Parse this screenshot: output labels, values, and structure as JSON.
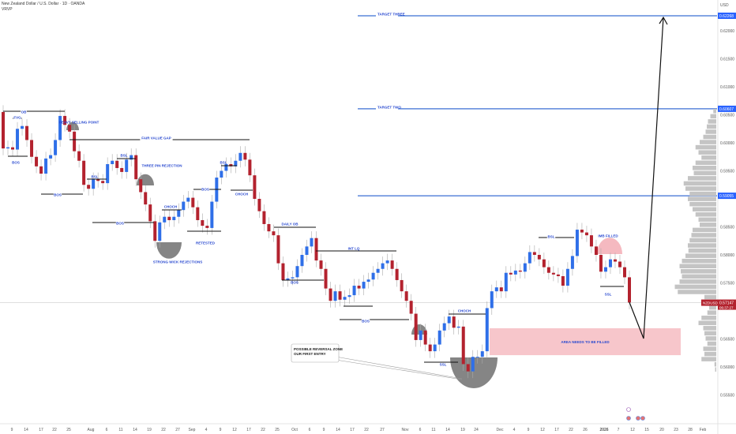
{
  "header": {
    "title": "New Zealand Dollar / U.S. Dollar · 1D · OANDA",
    "indicator": "VRVP"
  },
  "price_axis": {
    "currency": "USD",
    "ticks": [
      "0.62000",
      "0.61500",
      "0.61000",
      "0.60500",
      "0.60000",
      "0.59500",
      "0.58500",
      "0.58000",
      "0.57500",
      "0.56500",
      "0.56000",
      "0.55500"
    ],
    "highlighted_levels": [
      "0.62268",
      "0.60607",
      "0.59055"
    ],
    "current": {
      "symbol": "NZDUSD",
      "price": "0.57147",
      "countdown": "06:37:27"
    }
  },
  "time_axis": {
    "labels": [
      "9",
      "14",
      "17",
      "22",
      "25",
      "Aug",
      "6",
      "11",
      "14",
      "19",
      "22",
      "27",
      "Sep",
      "4",
      "9",
      "12",
      "17",
      "22",
      "25",
      "Oct",
      "6",
      "9",
      "14",
      "17",
      "22",
      "27",
      "Nov",
      "6",
      "11",
      "14",
      "19",
      "24",
      "Dec",
      "4",
      "9",
      "12",
      "17",
      "22",
      "26",
      "2026",
      "7",
      "12",
      "15",
      "20",
      "23",
      "28",
      "Feb"
    ]
  },
  "colors": {
    "up": "#2f6fe8",
    "down": "#b3222e",
    "level": "#3b6fd4",
    "zone": "#f7c6cb",
    "annotation": "#2a4ad0"
  },
  "chart_data": {
    "type": "candlestick",
    "title": "New Zealand Dollar / U.S. Dollar · 1D · OANDA",
    "ylabel": "USD",
    "ylim": [
      0.5535,
      0.6255
    ],
    "first_open": 0.6055,
    "closes": [
      0.599,
      0.5992,
      0.5988,
      0.6025,
      0.603,
      0.6005,
      0.5975,
      0.5958,
      0.5945,
      0.5972,
      0.5978,
      0.6005,
      0.6048,
      0.6032,
      0.602,
      0.5985,
      0.5968,
      0.5925,
      0.5918,
      0.5935,
      0.5932,
      0.5928,
      0.5962,
      0.5968,
      0.5955,
      0.5948,
      0.597,
      0.5978,
      0.5935,
      0.5912,
      0.589,
      0.586,
      0.5825,
      0.5858,
      0.5868,
      0.5862,
      0.5868,
      0.588,
      0.5895,
      0.5902,
      0.5885,
      0.5862,
      0.5852,
      0.5848,
      0.5895,
      0.5938,
      0.595,
      0.5962,
      0.5958,
      0.5968,
      0.5982,
      0.597,
      0.5942,
      0.59,
      0.5878,
      0.5855,
      0.5842,
      0.5835,
      0.5785,
      0.5755,
      0.5758,
      0.576,
      0.578,
      0.58,
      0.5815,
      0.583,
      0.579,
      0.5775,
      0.574,
      0.5718,
      0.5735,
      0.572,
      0.5725,
      0.5728,
      0.5745,
      0.574,
      0.5752,
      0.5756,
      0.5768,
      0.5775,
      0.5785,
      0.579,
      0.5775,
      0.5755,
      0.5735,
      0.5718,
      0.5695,
      0.5648,
      0.5665,
      0.564,
      0.5628,
      0.564,
      0.5665,
      0.5678,
      0.569,
      0.567,
      0.5672,
      0.5605,
      0.5592,
      0.5618,
      0.5618,
      0.5628,
      0.5705,
      0.5735,
      0.5742,
      0.5735,
      0.5768,
      0.5765,
      0.5772,
      0.577,
      0.5785,
      0.5805,
      0.58,
      0.5792,
      0.5778,
      0.5768,
      0.5765,
      0.5762,
      0.5745,
      0.5775,
      0.5798,
      0.5845,
      0.584,
      0.5835,
      0.5815,
      0.58,
      0.577,
      0.5778,
      0.5792,
      0.5788,
      0.5778,
      0.576,
      0.5715
    ],
    "levels": [
      {
        "label": "TARGET THREE",
        "price": 0.62268
      },
      {
        "label": "TARGET TWO",
        "price": 0.60607
      },
      {
        "label": "",
        "price": 0.59055
      }
    ],
    "zone": {
      "label": "AREA NEEDS TO BE FILLED",
      "from": 0.5621,
      "to": 0.5669
    },
    "callout": [
      "POSSIBLE REVERSAL ZONE",
      "OUR FIRST ENTRY"
    ],
    "annotations": [
      "OB",
      "FVG",
      "BOS",
      "HEAVY SELLING POINT",
      "FAIR VALUE GAP",
      "BSL",
      "THREE PIN REJECTION",
      "BSL",
      "BOS",
      "BOS",
      "CHOCH",
      "BOS",
      "BSL",
      "CHOCH",
      "RETESTED",
      "STRONG WICK REJECTIONS",
      "DAILY OB",
      "BOS",
      "INT LQ",
      "BOS",
      "CHOCH",
      "SSL",
      "BSL",
      "IMB FILLED",
      "SSL"
    ],
    "volume_profile": [
      5,
      10,
      14,
      16,
      18,
      22,
      28,
      35,
      30,
      25,
      35,
      40,
      38,
      48,
      55,
      52,
      45,
      48,
      45,
      40,
      35,
      30,
      28,
      40,
      42,
      45,
      48,
      47,
      52,
      58,
      62,
      60,
      58,
      62,
      70,
      65,
      20,
      10,
      12,
      15,
      25,
      30,
      22,
      20,
      18,
      15,
      22,
      20,
      25,
      3,
      2
    ],
    "grid": false
  }
}
